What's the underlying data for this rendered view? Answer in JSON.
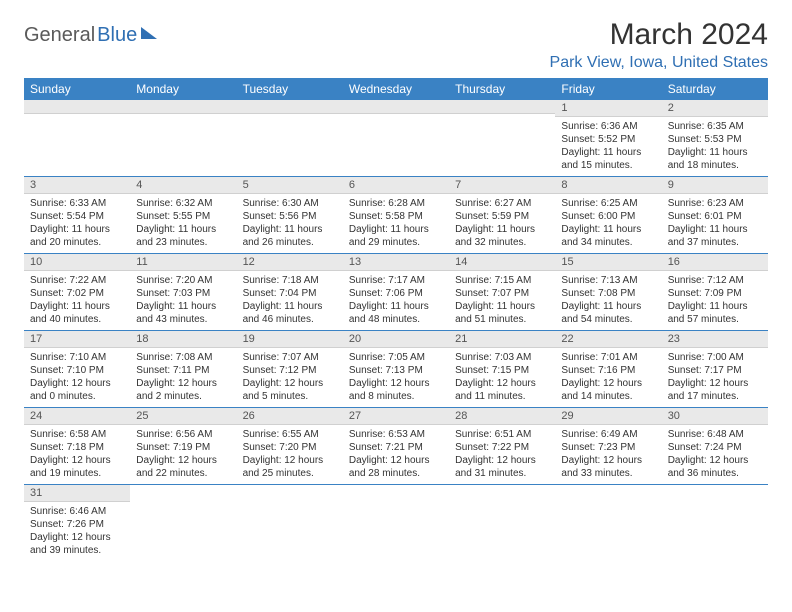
{
  "logo": {
    "part1": "General",
    "part2": "Blue"
  },
  "title": "March 2024",
  "location": "Park View, Iowa, United States",
  "colors": {
    "header_bg": "#3a82c4",
    "accent": "#2f6fb3",
    "daynum_bg": "#e9e9e9",
    "border": "#3a82c4"
  },
  "day_names": [
    "Sunday",
    "Monday",
    "Tuesday",
    "Wednesday",
    "Thursday",
    "Friday",
    "Saturday"
  ],
  "weeks": [
    [
      null,
      null,
      null,
      null,
      null,
      {
        "n": "1",
        "sr": "6:36 AM",
        "ss": "5:52 PM",
        "dl": "11 hours and 15 minutes."
      },
      {
        "n": "2",
        "sr": "6:35 AM",
        "ss": "5:53 PM",
        "dl": "11 hours and 18 minutes."
      }
    ],
    [
      {
        "n": "3",
        "sr": "6:33 AM",
        "ss": "5:54 PM",
        "dl": "11 hours and 20 minutes."
      },
      {
        "n": "4",
        "sr": "6:32 AM",
        "ss": "5:55 PM",
        "dl": "11 hours and 23 minutes."
      },
      {
        "n": "5",
        "sr": "6:30 AM",
        "ss": "5:56 PM",
        "dl": "11 hours and 26 minutes."
      },
      {
        "n": "6",
        "sr": "6:28 AM",
        "ss": "5:58 PM",
        "dl": "11 hours and 29 minutes."
      },
      {
        "n": "7",
        "sr": "6:27 AM",
        "ss": "5:59 PM",
        "dl": "11 hours and 32 minutes."
      },
      {
        "n": "8",
        "sr": "6:25 AM",
        "ss": "6:00 PM",
        "dl": "11 hours and 34 minutes."
      },
      {
        "n": "9",
        "sr": "6:23 AM",
        "ss": "6:01 PM",
        "dl": "11 hours and 37 minutes."
      }
    ],
    [
      {
        "n": "10",
        "sr": "7:22 AM",
        "ss": "7:02 PM",
        "dl": "11 hours and 40 minutes."
      },
      {
        "n": "11",
        "sr": "7:20 AM",
        "ss": "7:03 PM",
        "dl": "11 hours and 43 minutes."
      },
      {
        "n": "12",
        "sr": "7:18 AM",
        "ss": "7:04 PM",
        "dl": "11 hours and 46 minutes."
      },
      {
        "n": "13",
        "sr": "7:17 AM",
        "ss": "7:06 PM",
        "dl": "11 hours and 48 minutes."
      },
      {
        "n": "14",
        "sr": "7:15 AM",
        "ss": "7:07 PM",
        "dl": "11 hours and 51 minutes."
      },
      {
        "n": "15",
        "sr": "7:13 AM",
        "ss": "7:08 PM",
        "dl": "11 hours and 54 minutes."
      },
      {
        "n": "16",
        "sr": "7:12 AM",
        "ss": "7:09 PM",
        "dl": "11 hours and 57 minutes."
      }
    ],
    [
      {
        "n": "17",
        "sr": "7:10 AM",
        "ss": "7:10 PM",
        "dl": "12 hours and 0 minutes."
      },
      {
        "n": "18",
        "sr": "7:08 AM",
        "ss": "7:11 PM",
        "dl": "12 hours and 2 minutes."
      },
      {
        "n": "19",
        "sr": "7:07 AM",
        "ss": "7:12 PM",
        "dl": "12 hours and 5 minutes."
      },
      {
        "n": "20",
        "sr": "7:05 AM",
        "ss": "7:13 PM",
        "dl": "12 hours and 8 minutes."
      },
      {
        "n": "21",
        "sr": "7:03 AM",
        "ss": "7:15 PM",
        "dl": "12 hours and 11 minutes."
      },
      {
        "n": "22",
        "sr": "7:01 AM",
        "ss": "7:16 PM",
        "dl": "12 hours and 14 minutes."
      },
      {
        "n": "23",
        "sr": "7:00 AM",
        "ss": "7:17 PM",
        "dl": "12 hours and 17 minutes."
      }
    ],
    [
      {
        "n": "24",
        "sr": "6:58 AM",
        "ss": "7:18 PM",
        "dl": "12 hours and 19 minutes."
      },
      {
        "n": "25",
        "sr": "6:56 AM",
        "ss": "7:19 PM",
        "dl": "12 hours and 22 minutes."
      },
      {
        "n": "26",
        "sr": "6:55 AM",
        "ss": "7:20 PM",
        "dl": "12 hours and 25 minutes."
      },
      {
        "n": "27",
        "sr": "6:53 AM",
        "ss": "7:21 PM",
        "dl": "12 hours and 28 minutes."
      },
      {
        "n": "28",
        "sr": "6:51 AM",
        "ss": "7:22 PM",
        "dl": "12 hours and 31 minutes."
      },
      {
        "n": "29",
        "sr": "6:49 AM",
        "ss": "7:23 PM",
        "dl": "12 hours and 33 minutes."
      },
      {
        "n": "30",
        "sr": "6:48 AM",
        "ss": "7:24 PM",
        "dl": "12 hours and 36 minutes."
      }
    ],
    [
      {
        "n": "31",
        "sr": "6:46 AM",
        "ss": "7:26 PM",
        "dl": "12 hours and 39 minutes."
      },
      null,
      null,
      null,
      null,
      null,
      null
    ]
  ],
  "labels": {
    "sunrise": "Sunrise: ",
    "sunset": "Sunset: ",
    "daylight": "Daylight: "
  }
}
